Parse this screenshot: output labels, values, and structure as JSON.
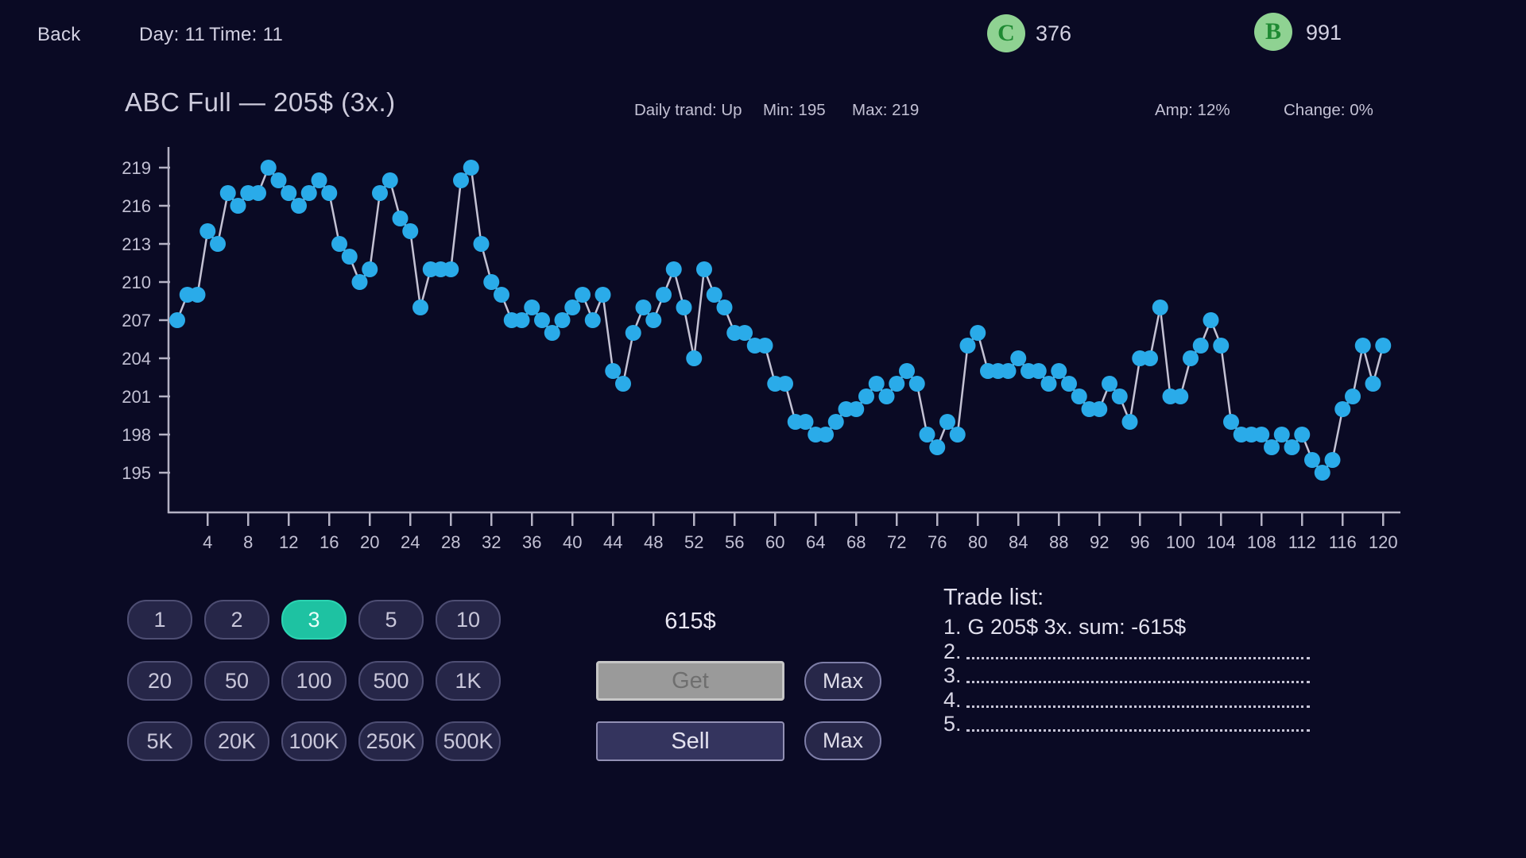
{
  "topbar": {
    "back_label": "Back",
    "day_label": "Day: 11",
    "time_label": "Time: 11",
    "coins": [
      {
        "symbol": "C",
        "value": "376"
      },
      {
        "symbol": "B",
        "value": "991"
      }
    ]
  },
  "chart_data": {
    "type": "line",
    "title": "ABC Full — 205$ (3x.)",
    "current_price": "205$",
    "multiplier": "3x.",
    "stats": [
      "Daily trand: Up",
      "Min: 195",
      "Max: 219",
      "Amp: 12%",
      "Change: 0%"
    ],
    "xlabel": "",
    "ylabel": "",
    "x_start": 1,
    "x_ticks": [
      4,
      8,
      12,
      16,
      20,
      24,
      28,
      32,
      36,
      40,
      44,
      48,
      52,
      56,
      60,
      64,
      68,
      72,
      76,
      80,
      84,
      88,
      92,
      96,
      100,
      104,
      108,
      112,
      116,
      120
    ],
    "y_ticks": [
      195,
      198,
      201,
      204,
      207,
      210,
      213,
      216,
      219
    ],
    "ylim": [
      195,
      219
    ],
    "grid": false,
    "legend": "none",
    "values": [
      207,
      209,
      209,
      214,
      213,
      217,
      216,
      217,
      217,
      219,
      218,
      217,
      216,
      217,
      218,
      217,
      213,
      212,
      210,
      211,
      217,
      218,
      215,
      214,
      208,
      211,
      211,
      211,
      218,
      219,
      213,
      210,
      209,
      207,
      207,
      208,
      207,
      206,
      207,
      208,
      209,
      207,
      209,
      203,
      202,
      206,
      208,
      207,
      209,
      211,
      208,
      204,
      211,
      209,
      208,
      206,
      206,
      205,
      205,
      202,
      202,
      199,
      199,
      198,
      198,
      199,
      200,
      200,
      201,
      202,
      201,
      202,
      203,
      202,
      198,
      197,
      199,
      198,
      205,
      206,
      203,
      203,
      203,
      204,
      203,
      203,
      202,
      203,
      202,
      201,
      200,
      200,
      202,
      201,
      199,
      204,
      204,
      208,
      201,
      201,
      204,
      205,
      207,
      205,
      199,
      198,
      198,
      198,
      197,
      198,
      197,
      198,
      196,
      195,
      196,
      200,
      201,
      205,
      202,
      205
    ],
    "colors": {
      "dot": "#2aabe9",
      "line": "#c4c2d4",
      "axis": "#b4b2c4",
      "tick_text": "#c3c1d4"
    }
  },
  "multiplier_buttons": {
    "selected": "3",
    "selected_color": "#1ec2a2",
    "rows": [
      [
        "1",
        "2",
        "3",
        "5",
        "10"
      ],
      [
        "20",
        "50",
        "100",
        "500",
        "1K"
      ],
      [
        "5K",
        "20K",
        "100K",
        "250K",
        "500K"
      ]
    ]
  },
  "trade_controls": {
    "amount": "615$",
    "get_label": "Get",
    "sell_label": "Sell",
    "max_label": "Max"
  },
  "trade_list": {
    "heading": "Trade list:",
    "entries": [
      {
        "index": "1.",
        "text": "G 205$ 3x. sum: -615$"
      },
      {
        "index": "2.",
        "text": ""
      },
      {
        "index": "3.",
        "text": ""
      },
      {
        "index": "4.",
        "text": ""
      },
      {
        "index": "5.",
        "text": ""
      }
    ]
  }
}
